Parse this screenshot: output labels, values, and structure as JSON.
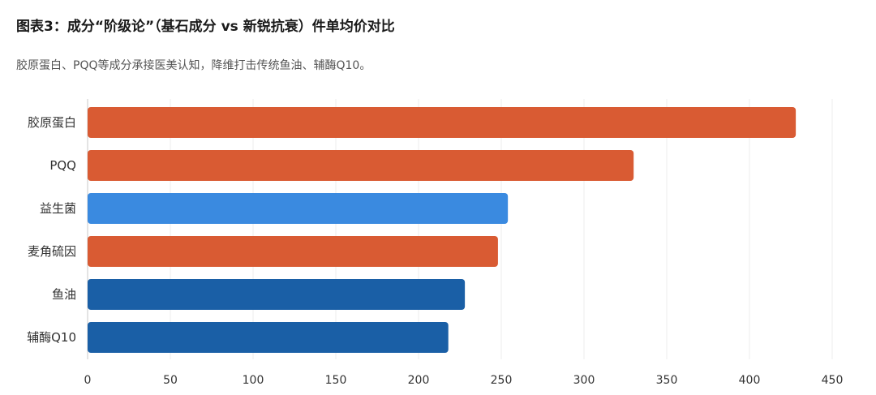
{
  "title": "图表3：成分“阶级论”（基石成分 vs 新锐抗衰）件单均价对比",
  "subtitle": "胶原蛋白、PQQ等成分承接医美认知，降维打击传统鱼油、辅酶Q10。",
  "chart_data": {
    "type": "bar",
    "orientation": "horizontal",
    "title": "图表3：成分“阶级论”（基石成分 vs 新锐抗衰）件单均价对比",
    "subtitle": "胶原蛋白、PQQ等成分承接医美认知，降维打击传统鱼油、辅酶Q10。",
    "xlabel": "",
    "ylabel": "",
    "categories": [
      "胶原蛋白",
      "PQQ",
      "益生菌",
      "麦角硫因",
      "鱼油",
      "辅酶Q10"
    ],
    "values": [
      428,
      330,
      254,
      248,
      228,
      218
    ],
    "colors": [
      "#d95b33",
      "#d95b33",
      "#3a8ae0",
      "#d95b33",
      "#1a5fa6",
      "#1a5fa6"
    ],
    "xlim": [
      0,
      450
    ],
    "xticks": [
      0,
      50,
      100,
      150,
      200,
      250,
      300,
      350,
      400,
      450
    ],
    "grid": "vertical",
    "legend": "none"
  }
}
